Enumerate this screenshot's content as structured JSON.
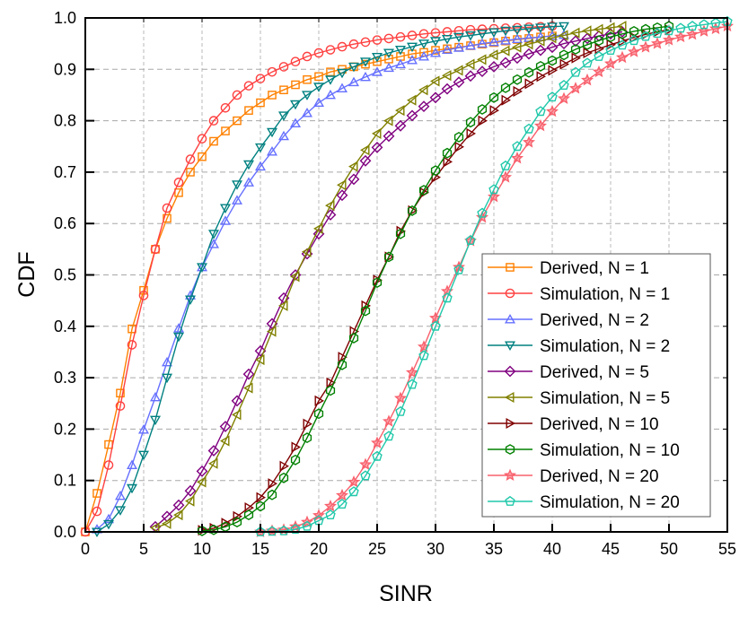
{
  "chart_data": {
    "type": "line",
    "title": "",
    "xlabel": "SINR",
    "ylabel": "CDF",
    "xlim": [
      0,
      55
    ],
    "ylim": [
      0,
      1
    ],
    "x_ticks": [
      "0",
      "5",
      "10",
      "15",
      "20",
      "25",
      "30",
      "35",
      "40",
      "45",
      "50",
      "55"
    ],
    "y_ticks": [
      "0.0",
      "0.1",
      "0.2",
      "0.3",
      "0.4",
      "0.5",
      "0.6",
      "0.7",
      "0.8",
      "0.9",
      "1.0"
    ],
    "grid": true,
    "legend_position": "bottom-right",
    "x_step": 1,
    "series": [
      {
        "name": "Derived, N = 1",
        "color": "#ff8000",
        "marker": "square",
        "x_start": 0,
        "y": [
          0,
          0.075,
          0.17,
          0.27,
          0.395,
          0.47,
          0.55,
          0.61,
          0.66,
          0.7,
          0.73,
          0.76,
          0.78,
          0.8,
          0.82,
          0.835,
          0.85,
          0.86,
          0.87,
          0.88,
          0.886,
          0.895,
          0.9,
          0.905,
          0.91,
          0.915,
          0.92,
          0.925,
          0.93,
          0.933,
          0.937,
          0.94,
          0.943,
          0.946,
          0.949,
          0.952,
          0.955,
          0.958,
          0.96,
          0.963,
          0.965
        ]
      },
      {
        "name": "Simulation, N = 1",
        "color": "#ff4040",
        "marker": "circle",
        "x_start": 0,
        "y": [
          0,
          0.04,
          0.13,
          0.245,
          0.364,
          0.46,
          0.55,
          0.63,
          0.68,
          0.725,
          0.765,
          0.8,
          0.825,
          0.85,
          0.868,
          0.882,
          0.895,
          0.905,
          0.915,
          0.925,
          0.932,
          0.938,
          0.944,
          0.949,
          0.953,
          0.957,
          0.96,
          0.963,
          0.966,
          0.969,
          0.971,
          0.973,
          0.975,
          0.977,
          0.978,
          0.979,
          0.98,
          0.981,
          0.982,
          0.983,
          0.984
        ]
      },
      {
        "name": "Derived, N = 2",
        "color": "#6670ff",
        "marker": "triangle-up",
        "x_start": 1,
        "y": [
          0.005,
          0.025,
          0.07,
          0.13,
          0.199,
          0.262,
          0.33,
          0.396,
          0.46,
          0.515,
          0.56,
          0.605,
          0.645,
          0.68,
          0.711,
          0.74,
          0.77,
          0.795,
          0.815,
          0.835,
          0.85,
          0.863,
          0.875,
          0.885,
          0.895,
          0.903,
          0.91,
          0.918,
          0.925,
          0.932,
          0.938,
          0.942,
          0.946,
          0.95,
          0.953,
          0.956,
          0.959,
          0.961,
          0.963,
          0.965,
          0.967
        ]
      },
      {
        "name": "Simulation, N = 2",
        "color": "#008080",
        "marker": "triangle-down",
        "x_start": 1,
        "y": [
          0.0,
          0.015,
          0.042,
          0.085,
          0.15,
          0.218,
          0.3,
          0.38,
          0.452,
          0.515,
          0.58,
          0.63,
          0.676,
          0.715,
          0.748,
          0.778,
          0.81,
          0.832,
          0.85,
          0.866,
          0.88,
          0.893,
          0.905,
          0.915,
          0.924,
          0.932,
          0.938,
          0.944,
          0.95,
          0.955,
          0.959,
          0.963,
          0.966,
          0.969,
          0.972,
          0.975,
          0.977,
          0.979,
          0.981,
          0.983,
          0.984
        ]
      },
      {
        "name": "Derived, N = 5",
        "color": "#800080",
        "marker": "diamond",
        "x_start": 6,
        "y": [
          0.01,
          0.03,
          0.052,
          0.08,
          0.118,
          0.158,
          0.205,
          0.255,
          0.307,
          0.352,
          0.405,
          0.455,
          0.5,
          0.541,
          0.58,
          0.617,
          0.655,
          0.686,
          0.722,
          0.748,
          0.77,
          0.79,
          0.81,
          0.828,
          0.845,
          0.862,
          0.875,
          0.887,
          0.896,
          0.905,
          0.913,
          0.922,
          0.93,
          0.937,
          0.943,
          0.95,
          0.955,
          0.96,
          0.965,
          0.969,
          0.973
        ]
      },
      {
        "name": "Simulation, N = 5",
        "color": "#808000",
        "marker": "triangle-left",
        "x_start": 6,
        "y": [
          0.008,
          0.016,
          0.033,
          0.06,
          0.097,
          0.133,
          0.177,
          0.228,
          0.28,
          0.335,
          0.39,
          0.44,
          0.497,
          0.545,
          0.59,
          0.635,
          0.675,
          0.711,
          0.743,
          0.775,
          0.8,
          0.82,
          0.84,
          0.86,
          0.877,
          0.888,
          0.898,
          0.91,
          0.919,
          0.928,
          0.936,
          0.943,
          0.949,
          0.955,
          0.961,
          0.966,
          0.971,
          0.975,
          0.978,
          0.981,
          0.984
        ]
      },
      {
        "name": "Derived, N = 10",
        "color": "#800000",
        "marker": "triangle-right",
        "x_start": 10,
        "y": [
          0.003,
          0.007,
          0.017,
          0.03,
          0.047,
          0.067,
          0.094,
          0.128,
          0.165,
          0.21,
          0.255,
          0.29,
          0.34,
          0.39,
          0.44,
          0.49,
          0.535,
          0.585,
          0.625,
          0.66,
          0.69,
          0.72,
          0.749,
          0.775,
          0.8,
          0.82,
          0.84,
          0.857,
          0.872,
          0.886,
          0.898,
          0.91,
          0.922,
          0.932,
          0.94,
          0.948,
          0.955,
          0.962,
          0.968,
          0.973,
          0.977
        ]
      },
      {
        "name": "Simulation, N = 10",
        "color": "#008000",
        "marker": "hexagon",
        "x_start": 10,
        "y": [
          0.002,
          0.004,
          0.01,
          0.019,
          0.033,
          0.05,
          0.072,
          0.105,
          0.14,
          0.183,
          0.23,
          0.275,
          0.325,
          0.377,
          0.43,
          0.485,
          0.535,
          0.58,
          0.625,
          0.665,
          0.703,
          0.737,
          0.768,
          0.797,
          0.822,
          0.845,
          0.864,
          0.88,
          0.894,
          0.906,
          0.917,
          0.928,
          0.939,
          0.948,
          0.956,
          0.963,
          0.969,
          0.974,
          0.978,
          0.981,
          0.984
        ]
      },
      {
        "name": "Derived, N = 20",
        "color": "#f8606c",
        "marker": "star",
        "x_start": 15,
        "y": [
          0,
          0.002,
          0.004,
          0.01,
          0.019,
          0.032,
          0.05,
          0.071,
          0.097,
          0.131,
          0.173,
          0.215,
          0.26,
          0.31,
          0.36,
          0.416,
          0.468,
          0.515,
          0.566,
          0.612,
          0.652,
          0.69,
          0.727,
          0.758,
          0.79,
          0.818,
          0.843,
          0.863,
          0.879,
          0.895,
          0.911,
          0.923,
          0.934,
          0.943,
          0.95,
          0.957,
          0.963,
          0.968,
          0.974,
          0.979,
          0.984
        ]
      },
      {
        "name": "Simulation, N = 20",
        "color": "#20c8aa",
        "marker": "pentagon",
        "x_start": 15,
        "y": [
          0,
          0.001,
          0.002,
          0.005,
          0.011,
          0.022,
          0.033,
          0.054,
          0.078,
          0.109,
          0.147,
          0.186,
          0.234,
          0.287,
          0.343,
          0.4,
          0.455,
          0.51,
          0.567,
          0.62,
          0.666,
          0.712,
          0.75,
          0.784,
          0.818,
          0.846,
          0.869,
          0.894,
          0.912,
          0.925,
          0.937,
          0.947,
          0.956,
          0.964,
          0.97,
          0.975,
          0.98,
          0.984,
          0.987,
          0.99,
          0.993
        ]
      }
    ]
  }
}
